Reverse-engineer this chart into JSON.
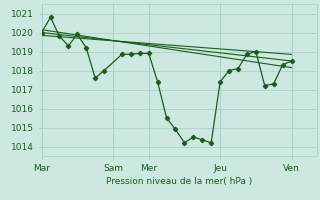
{
  "background_color": "#cce8e0",
  "grid_color": "#aacccc",
  "line_color": "#1a5e1a",
  "text_color": "#1a5e1a",
  "xlabel": "Pression niveau de la mer( hPa )",
  "ylim": [
    1013.5,
    1021.5
  ],
  "yticks": [
    1014,
    1015,
    1016,
    1017,
    1018,
    1019,
    1020,
    1021
  ],
  "xtick_labels": [
    "Mar",
    "Sam",
    "Mer",
    "Jeu",
    "Ven"
  ],
  "xtick_positions": [
    0,
    48,
    72,
    120,
    168
  ],
  "xlim": [
    0,
    185
  ],
  "main_series_x": [
    0,
    6,
    12,
    18,
    24,
    30,
    36,
    42,
    54,
    60,
    66,
    72,
    78,
    84,
    90,
    96,
    102,
    108,
    114,
    120,
    126,
    132,
    138,
    144,
    150,
    156,
    162,
    168
  ],
  "main_series_y": [
    1020.0,
    1020.8,
    1019.8,
    1019.3,
    1019.9,
    1019.2,
    1017.6,
    1018.0,
    1018.85,
    1018.85,
    1018.9,
    1018.9,
    1017.4,
    1015.5,
    1014.9,
    1014.2,
    1014.5,
    1014.35,
    1014.2,
    1017.4,
    1018.0,
    1018.1,
    1018.85,
    1019.0,
    1017.2,
    1017.3,
    1018.3,
    1018.5
  ],
  "trend_line1_x": [
    0,
    168
  ],
  "trend_line1_y": [
    1020.0,
    1018.5
  ],
  "trend_line2_x": [
    0,
    168
  ],
  "trend_line2_y": [
    1019.85,
    1018.85
  ],
  "trend_line3_x": [
    0,
    168
  ],
  "trend_line3_y": [
    1020.15,
    1018.15
  ],
  "vline_positions": [
    0,
    48,
    72,
    120,
    168
  ]
}
